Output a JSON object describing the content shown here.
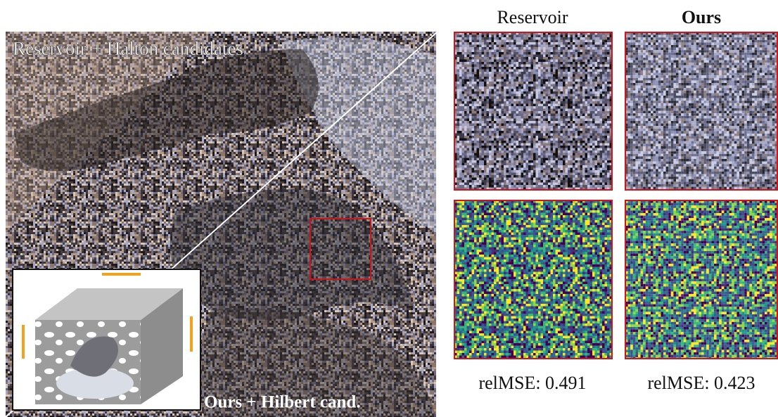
{
  "main_image": {
    "top_label": "Reservoir + Halton candidates",
    "bottom_label": "Ours + Hilbert cand."
  },
  "crops": [
    {
      "title": "Reservoir",
      "metric": "relMSE: 0.491"
    },
    {
      "title": "Ours",
      "metric": "relMSE: 0.423"
    }
  ]
}
